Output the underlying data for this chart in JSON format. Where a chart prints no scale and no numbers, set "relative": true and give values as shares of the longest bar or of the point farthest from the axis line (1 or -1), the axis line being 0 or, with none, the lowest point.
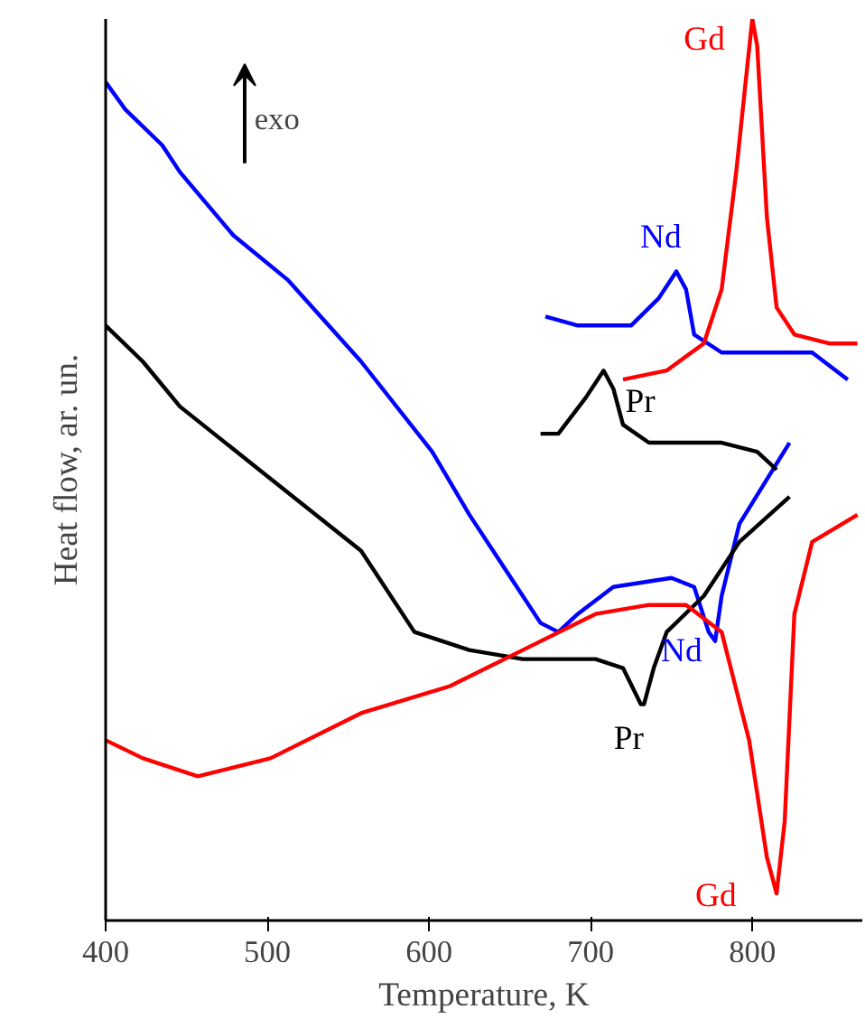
{
  "chart_data": {
    "type": "line",
    "xlabel": "Temperature, K",
    "ylabel": "Heat flow, ar. un.",
    "relative": true,
    "xlim": [
      400,
      868
    ],
    "xticks": [
      400,
      500,
      600,
      700,
      800
    ],
    "tick_labels": "x",
    "grid": false,
    "line_style": "solid",
    "marker": "none",
    "annotations": [
      "exo"
    ],
    "series": [
      {
        "name": "Nd",
        "color": "#0000ff",
        "x": [
          400,
          412,
          435,
          446,
          479,
          513,
          558,
          602,
          625,
          647,
          669,
          680,
          692,
          714,
          750,
          764,
          773,
          777,
          781,
          792,
          823
        ],
        "values": [
          0.93,
          0.9,
          0.86,
          0.83,
          0.76,
          0.71,
          0.62,
          0.52,
          0.45,
          0.39,
          0.33,
          0.32,
          0.34,
          0.37,
          0.38,
          0.37,
          0.32,
          0.31,
          0.36,
          0.44,
          0.53
        ]
      },
      {
        "name": "Pr",
        "color": "#000000",
        "x": [
          400,
          423,
          446,
          502,
          558,
          591,
          625,
          658,
          680,
          703,
          720,
          731,
          733,
          739,
          747,
          770,
          792,
          823
        ],
        "values": [
          0.66,
          0.62,
          0.57,
          0.49,
          0.41,
          0.32,
          0.3,
          0.29,
          0.29,
          0.29,
          0.28,
          0.24,
          0.24,
          0.28,
          0.32,
          0.36,
          0.42,
          0.47
        ]
      },
      {
        "name": "Gd",
        "color": "#ff0000",
        "x": [
          400,
          423,
          457,
          502,
          558,
          613,
          658,
          703,
          736,
          759,
          781,
          798,
          809,
          815,
          820,
          826,
          837,
          865
        ],
        "values": [
          0.2,
          0.18,
          0.16,
          0.18,
          0.23,
          0.26,
          0.3,
          0.34,
          0.35,
          0.35,
          0.32,
          0.2,
          0.07,
          0.03,
          0.11,
          0.34,
          0.42,
          0.45
        ]
      },
      {
        "name": "Nd",
        "color": "#0000ff",
        "x": [
          672,
          692,
          725,
          742,
          753,
          759,
          764,
          781,
          803,
          837,
          859
        ],
        "values": [
          0.67,
          0.66,
          0.66,
          0.69,
          0.72,
          0.7,
          0.65,
          0.63,
          0.63,
          0.63,
          0.6
        ]
      },
      {
        "name": "Pr",
        "color": "#000000",
        "x": [
          669,
          680,
          697,
          708,
          714,
          720,
          736,
          781,
          803,
          815
        ],
        "values": [
          0.54,
          0.54,
          0.58,
          0.61,
          0.59,
          0.55,
          0.53,
          0.53,
          0.52,
          0.5
        ]
      },
      {
        "name": "Gd",
        "color": "#ff0000",
        "x": [
          720,
          747,
          770,
          781,
          790,
          797,
          800,
          803,
          809,
          815,
          826,
          848,
          865
        ],
        "values": [
          0.6,
          0.61,
          0.64,
          0.7,
          0.83,
          0.95,
          1.0,
          0.97,
          0.78,
          0.68,
          0.65,
          0.64,
          0.64
        ]
      }
    ]
  }
}
